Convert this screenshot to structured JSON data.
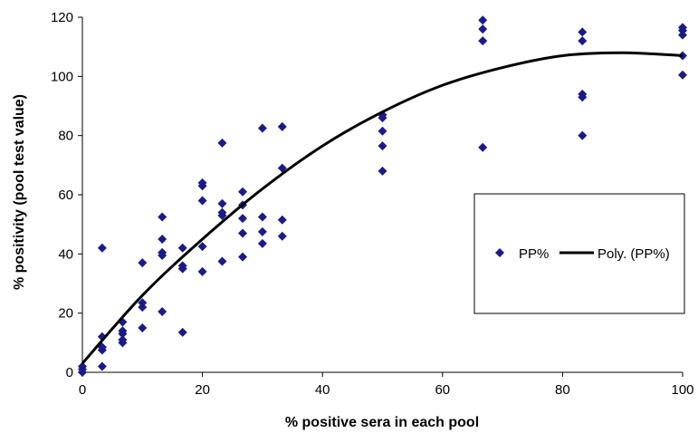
{
  "chart_data": {
    "type": "scatter",
    "xlabel": "% positive sera in each pool",
    "ylabel": "% positivity (pool test value)",
    "xlim": [
      0,
      100
    ],
    "ylim": [
      0,
      120
    ],
    "x_ticks": [
      "0",
      "20",
      "40",
      "60",
      "80",
      "100"
    ],
    "y_ticks": [
      "0",
      "20",
      "40",
      "60",
      "80",
      "100",
      "120"
    ],
    "grid": false,
    "legend_position": "right",
    "colors": {
      "points": "#1a1a8c",
      "trendline": "#000000"
    },
    "series": [
      {
        "name": "PP%",
        "type": "scatter",
        "points": [
          [
            0,
            0
          ],
          [
            0,
            1
          ],
          [
            0,
            2
          ],
          [
            3.3,
            2
          ],
          [
            3.3,
            7.5
          ],
          [
            3.3,
            8.5
          ],
          [
            3.3,
            12
          ],
          [
            3.3,
            42
          ],
          [
            6.7,
            10
          ],
          [
            6.7,
            11
          ],
          [
            6.7,
            13
          ],
          [
            6.7,
            14
          ],
          [
            6.7,
            17
          ],
          [
            10,
            15
          ],
          [
            10,
            22
          ],
          [
            10,
            23.5
          ],
          [
            10,
            37
          ],
          [
            13.3,
            20.5
          ],
          [
            13.3,
            39.5
          ],
          [
            13.3,
            40.5
          ],
          [
            13.3,
            45
          ],
          [
            13.3,
            52.5
          ],
          [
            16.7,
            13.5
          ],
          [
            16.7,
            35
          ],
          [
            16.7,
            36
          ],
          [
            16.7,
            42
          ],
          [
            20,
            34
          ],
          [
            20,
            42.5
          ],
          [
            20,
            58
          ],
          [
            20,
            63
          ],
          [
            20,
            64
          ],
          [
            23.3,
            37.5
          ],
          [
            23.3,
            53
          ],
          [
            23.3,
            54
          ],
          [
            23.3,
            57
          ],
          [
            23.3,
            77.5
          ],
          [
            26.7,
            39
          ],
          [
            26.7,
            47
          ],
          [
            26.7,
            52
          ],
          [
            26.7,
            56.5
          ],
          [
            26.7,
            61
          ],
          [
            30,
            43.5
          ],
          [
            30,
            47.5
          ],
          [
            30,
            52.5
          ],
          [
            30,
            82.5
          ],
          [
            33.3,
            46
          ],
          [
            33.3,
            51.5
          ],
          [
            33.3,
            69
          ],
          [
            33.3,
            83
          ],
          [
            50,
            68
          ],
          [
            50,
            76.5
          ],
          [
            50,
            81.5
          ],
          [
            50,
            86
          ],
          [
            50,
            87
          ],
          [
            66.7,
            76
          ],
          [
            66.7,
            112
          ],
          [
            66.7,
            116
          ],
          [
            66.7,
            119
          ],
          [
            83.3,
            80
          ],
          [
            83.3,
            93
          ],
          [
            83.3,
            94
          ],
          [
            83.3,
            112
          ],
          [
            83.3,
            115
          ],
          [
            100,
            100.5
          ],
          [
            100,
            107
          ],
          [
            100,
            114
          ],
          [
            100,
            115.5
          ],
          [
            100,
            116.5
          ]
        ]
      },
      {
        "name": "Poly. (PP%)",
        "type": "line",
        "curve_points": [
          [
            0,
            3
          ],
          [
            10,
            26
          ],
          [
            20,
            45
          ],
          [
            30,
            62
          ],
          [
            40,
            76.5
          ],
          [
            50,
            88
          ],
          [
            60,
            97
          ],
          [
            70,
            103
          ],
          [
            80,
            107
          ],
          [
            90,
            108
          ],
          [
            100,
            107
          ]
        ]
      }
    ]
  }
}
